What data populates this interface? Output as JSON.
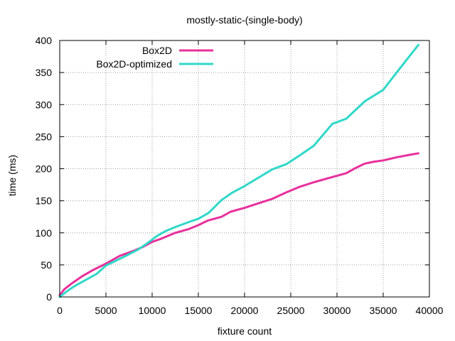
{
  "chart_data": {
    "type": "line",
    "title": "mostly-static-(single-body)",
    "xlabel": "fixture count",
    "ylabel": "time (ms)",
    "xlim": [
      0,
      40000
    ],
    "ylim": [
      0,
      400
    ],
    "xticks": [
      0,
      5000,
      10000,
      15000,
      20000,
      25000,
      30000,
      35000,
      40000
    ],
    "yticks": [
      0,
      50,
      100,
      150,
      200,
      250,
      300,
      350,
      400
    ],
    "grid": true,
    "legend_position": "top-left",
    "series": [
      {
        "name": "Box2D",
        "color": "#e8309c",
        "points": [
          [
            0,
            3
          ],
          [
            500,
            12
          ],
          [
            1300,
            21
          ],
          [
            2400,
            32
          ],
          [
            3600,
            42
          ],
          [
            5000,
            52
          ],
          [
            6500,
            64
          ],
          [
            8000,
            72
          ],
          [
            9000,
            78
          ],
          [
            10000,
            86
          ],
          [
            11000,
            91
          ],
          [
            12500,
            100
          ],
          [
            14000,
            106
          ],
          [
            15000,
            112
          ],
          [
            16000,
            119
          ],
          [
            17500,
            125
          ],
          [
            18500,
            133
          ],
          [
            20000,
            139
          ],
          [
            21500,
            146
          ],
          [
            23000,
            153
          ],
          [
            24500,
            163
          ],
          [
            26000,
            172
          ],
          [
            27500,
            179
          ],
          [
            29500,
            187
          ],
          [
            31000,
            193
          ],
          [
            32000,
            201
          ],
          [
            33000,
            208
          ],
          [
            34000,
            211
          ],
          [
            35000,
            213
          ],
          [
            36500,
            218
          ],
          [
            38000,
            222
          ],
          [
            38800,
            224
          ]
        ]
      },
      {
        "name": "Box2D-optimized",
        "color": "#30d8c8",
        "points": [
          [
            0,
            0
          ],
          [
            700,
            8
          ],
          [
            1500,
            16
          ],
          [
            3000,
            28
          ],
          [
            4000,
            36
          ],
          [
            5000,
            49
          ],
          [
            6000,
            56
          ],
          [
            7000,
            63
          ],
          [
            8500,
            74
          ],
          [
            9500,
            84
          ],
          [
            10500,
            95
          ],
          [
            11500,
            103
          ],
          [
            12500,
            109
          ],
          [
            14000,
            117
          ],
          [
            15000,
            122
          ],
          [
            16100,
            131
          ],
          [
            17500,
            151
          ],
          [
            18700,
            163
          ],
          [
            20000,
            173
          ],
          [
            21500,
            186
          ],
          [
            23000,
            199
          ],
          [
            24500,
            207
          ],
          [
            26000,
            221
          ],
          [
            27500,
            236
          ],
          [
            29500,
            270
          ],
          [
            31000,
            278
          ],
          [
            33000,
            305
          ],
          [
            35000,
            323
          ],
          [
            37000,
            360
          ],
          [
            38800,
            393
          ]
        ]
      }
    ]
  }
}
